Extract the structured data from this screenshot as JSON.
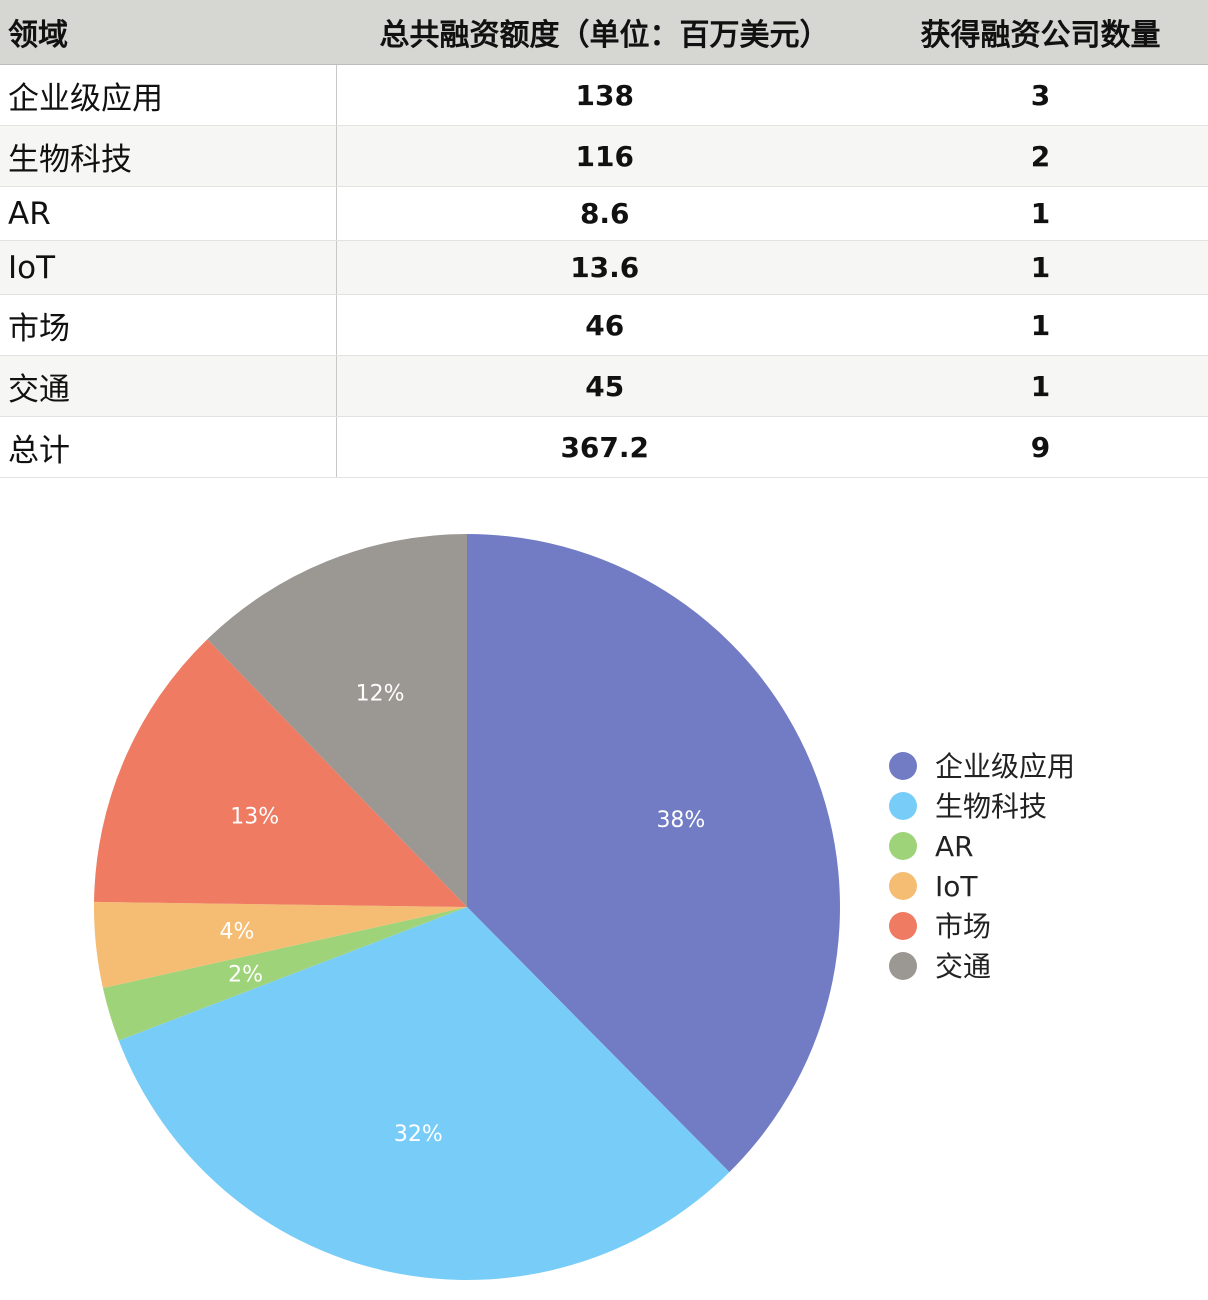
{
  "table": {
    "headers": [
      "领域",
      "总共融资额度（单位：百万美元）",
      "获得融资公司数量"
    ],
    "rows": [
      [
        "企业级应用",
        "138",
        "3"
      ],
      [
        "生物科技",
        "116",
        "2"
      ],
      [
        "AR",
        "8.6",
        "1"
      ],
      [
        "IoT",
        "13.6",
        "1"
      ],
      [
        "市场",
        "46",
        "1"
      ],
      [
        "交通",
        "45",
        "1"
      ],
      [
        "总计",
        "367.2",
        "9"
      ]
    ]
  },
  "chart_data": {
    "type": "pie",
    "categories": [
      "企业级应用",
      "生物科技",
      "AR",
      "IoT",
      "市场",
      "交通"
    ],
    "values": [
      138,
      116,
      8.6,
      13.6,
      46,
      45
    ],
    "percent_labels": [
      "38%",
      "32%",
      "2%",
      "4%",
      "13%",
      "12%"
    ],
    "colors": [
      "#727cc5",
      "#78cdf8",
      "#9fd37a",
      "#f5bd73",
      "#ee7b62",
      "#9b9893"
    ],
    "start_angle": "12 o'clock",
    "direction": "clockwise",
    "legend_position": "right"
  }
}
